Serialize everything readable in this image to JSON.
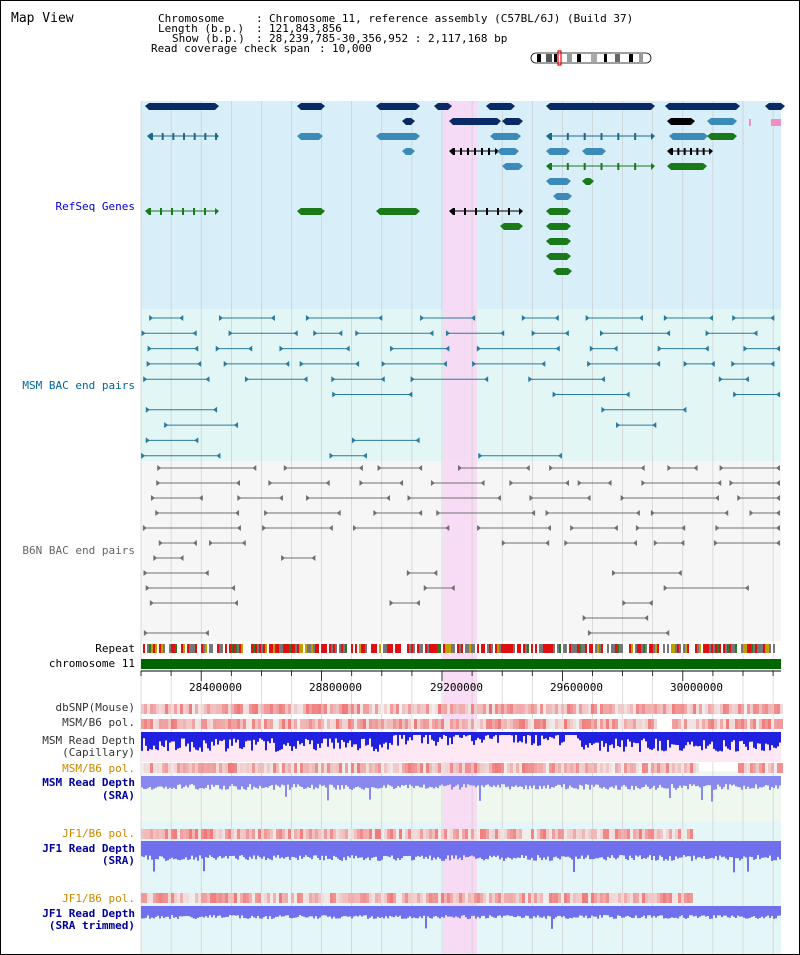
{
  "title": "Map View",
  "header": {
    "chromosome_key": "Chromosome",
    "chromosome_val": "Chromosome 11, reference assembly (C57BL/6J) (Build 37)",
    "length_key": "Length (b.p.)",
    "length_val": "121,843,856",
    "show_key": "Show (b.p.)",
    "show_val": "28,239,785-30,356,952 : 2,117,168 bp",
    "coverage_key": "Read coverage check span",
    "coverage_val": "10,000"
  },
  "tracks": {
    "refseq": {
      "label": "RefSeq Genes",
      "color": "#0000cc"
    },
    "msm_bac": {
      "label": "MSM BAC end pairs",
      "color": "#006699"
    },
    "b6n_bac": {
      "label": "B6N BAC end pairs",
      "color": "#666666"
    },
    "repeat": {
      "label": "Repeat",
      "color": "#000000"
    },
    "chrom": {
      "label": "chromosome 11",
      "color": "#000000"
    },
    "dbsnp": {
      "label": "dbSNP(Mouse)",
      "color": "#333333"
    },
    "msm_b6_pol": {
      "label": "MSM/B6 pol.",
      "color": "#333333"
    },
    "msm_depth_cap_1": {
      "label": "MSM Read Depth",
      "color": "#333333"
    },
    "msm_depth_cap_2": {
      "label": "(Capillary)",
      "color": "#333333"
    },
    "msm_b6_pol2": {
      "label": "MSM/B6 pol.",
      "color": "#cc8800"
    },
    "msm_depth_sra_1": {
      "label": "MSM Read Depth",
      "color": "#000099"
    },
    "msm_depth_sra_2": {
      "label": "(SRA)",
      "color": "#000099"
    },
    "jf1_b6_pol": {
      "label": "JF1/B6 pol.",
      "color": "#cc8800"
    },
    "jf1_depth_1": {
      "label": "JF1 Read Depth",
      "color": "#000099"
    },
    "jf1_depth_2": {
      "label": "(SRA)",
      "color": "#000099"
    },
    "jf1_b6_pol2": {
      "label": "JF1/B6 pol.",
      "color": "#cc8800"
    },
    "jf1_trim_1": {
      "label": "JF1 Read Depth",
      "color": "#000099"
    },
    "jf1_trim_2": {
      "label": "(SRA trimmed)",
      "color": "#000099"
    }
  },
  "axis_ticks": [
    "28400000",
    "28800000",
    "29200000",
    "29600000",
    "30000000"
  ],
  "colors": {
    "refseq_bg": "#d8eef8",
    "msm_bg": "#e2f6f6",
    "b6n_bg": "#f6f6f6",
    "highlight": "#f8d8f4",
    "chrom_bar": "#006600",
    "dark_gene": "#0a2a66",
    "mid_gene": "#3c8ab8",
    "green_gene": "#1a7a1a"
  }
}
